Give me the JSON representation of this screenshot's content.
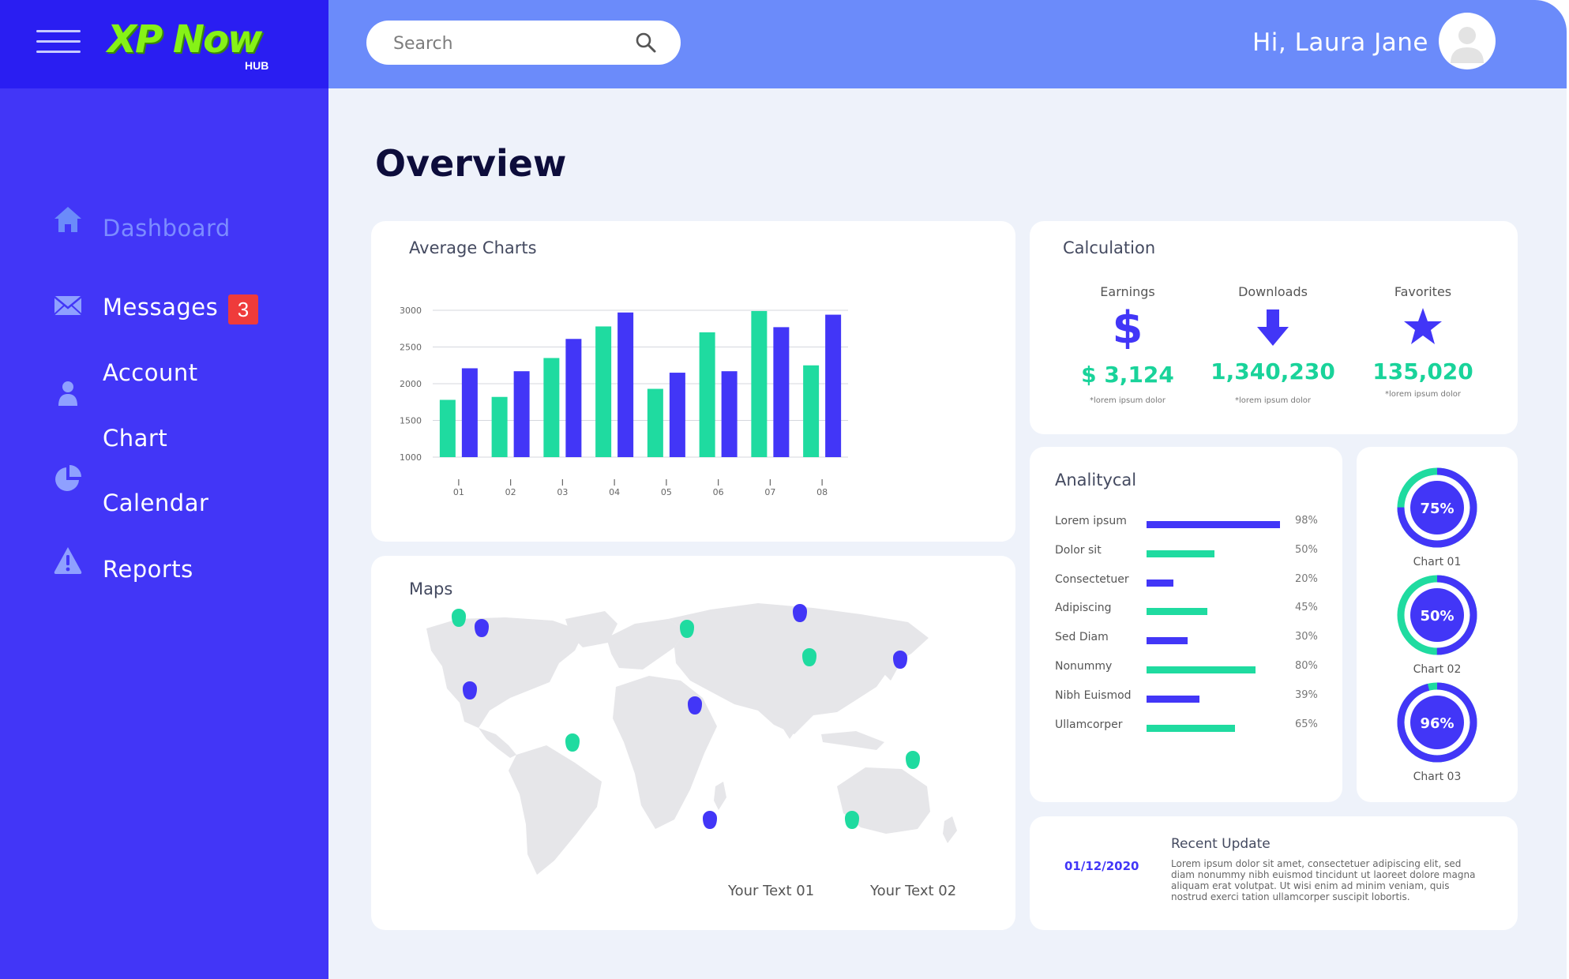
{
  "app": {
    "logo_text": "XP Now",
    "logo_sub": "HUB"
  },
  "sidebar": {
    "items": [
      {
        "label": "Dashboard",
        "icon": "home-icon",
        "active": true
      },
      {
        "label": "Messages",
        "icon": "envelope-icon",
        "badge": "3"
      },
      {
        "label": "Account",
        "icon": "user-icon"
      },
      {
        "label": "Chart",
        "icon": "pie-chart-icon"
      },
      {
        "label": "Calendar"
      },
      {
        "label": "Reports",
        "icon": "warning-icon"
      }
    ]
  },
  "header": {
    "search_placeholder": "Search",
    "greeting": "Hi, Laura Jane"
  },
  "page": {
    "title": "Overview"
  },
  "average_charts": {
    "title": "Average Charts",
    "chart_data": {
      "type": "bar",
      "categories": [
        "01",
        "02",
        "03",
        "04",
        "05",
        "06",
        "07",
        "08"
      ],
      "y_ticks": [
        "3000",
        "2500",
        "2000",
        "1500",
        "1000"
      ],
      "ylim": [
        1000,
        3000
      ],
      "series": [
        {
          "color": "#1fdba0",
          "values": [
            1780,
            1820,
            2350,
            2780,
            1930,
            2700,
            2990,
            2250
          ]
        },
        {
          "color": "#4236f7",
          "values": [
            2210,
            2170,
            2610,
            2970,
            2150,
            2170,
            2770,
            2940
          ]
        }
      ],
      "grid": true
    }
  },
  "calculation": {
    "title": "Calculation",
    "items": [
      {
        "label": "Earnings",
        "value": "$ 3,124",
        "note": "*lorem ipsum dolor",
        "icon": "dollar-icon"
      },
      {
        "label": "Downloads",
        "value": "1,340,230",
        "note": "*lorem ipsum dolor",
        "icon": "arrow-down-icon"
      },
      {
        "label": "Favorites",
        "value": "135,020",
        "note": "*lorem ipsum dolor",
        "icon": "star-icon"
      }
    ]
  },
  "analytical": {
    "title": "Analitycal",
    "rows": [
      {
        "label": "Lorem ipsum",
        "pct_text": "98%",
        "value": 98,
        "color": "#4236f7"
      },
      {
        "label": "Dolor sit",
        "pct_text": "50%",
        "value": 50,
        "color": "#1fdba0"
      },
      {
        "label": "Consectetuer",
        "pct_text": "20%",
        "value": 20,
        "color": "#4236f7"
      },
      {
        "label": "Adipiscing",
        "pct_text": "45%",
        "value": 45,
        "color": "#1fdba0"
      },
      {
        "label": "Sed Diam",
        "pct_text": "30%",
        "value": 30,
        "color": "#4236f7"
      },
      {
        "label": "Nonummy",
        "pct_text": "80%",
        "value": 80,
        "color": "#1fdba0"
      },
      {
        "label": "Nibh Euismod",
        "pct_text": "39%",
        "value": 39,
        "color": "#4236f7"
      },
      {
        "label": "Ullamcorper",
        "pct_text": "65%",
        "value": 65,
        "color": "#1fdba0"
      }
    ]
  },
  "donuts": [
    {
      "label": "Chart 01",
      "pct_text": "75%",
      "value": 75
    },
    {
      "label": "Chart 02",
      "pct_text": "50%",
      "value": 50
    },
    {
      "label": "Chart 03",
      "pct_text": "96%",
      "value": 96
    }
  ],
  "maps": {
    "title": "Maps",
    "legend": [
      {
        "label": "Your Text 01",
        "color": "#4236f7"
      },
      {
        "label": "Your Text 02",
        "color": "#1fdba0"
      }
    ]
  },
  "recent_update": {
    "date": "01/12/2020",
    "title": "Recent Update",
    "body": "Lorem ipsum dolor sit amet, consectetuer adipiscing elit, sed diam nonummy nibh euismod tincidunt ut laoreet dolore magna aliquam erat volutpat. Ut wisi enim ad minim veniam, quis nostrud exerci tation ullamcorper suscipit lobortis."
  },
  "colors": {
    "primary": "#4236f7",
    "secondary": "#1fdba0",
    "topbar": "#6b8bfa",
    "background": "#eef2fa"
  }
}
